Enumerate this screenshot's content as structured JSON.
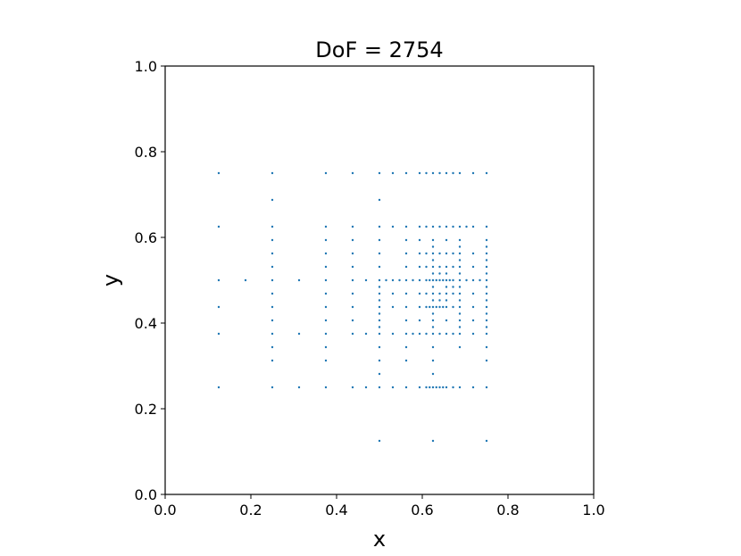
{
  "chart_data": {
    "type": "scatter",
    "title": "DoF = 2754",
    "xlabel": "x",
    "ylabel": "y",
    "xlim": [
      0.0,
      1.0
    ],
    "ylim": [
      0.0,
      1.0
    ],
    "xticks": [
      "0.0",
      "0.2",
      "0.4",
      "0.6",
      "0.8",
      "1.0"
    ],
    "yticks": [
      "0.0",
      "0.2",
      "0.4",
      "0.6",
      "0.8",
      "1.0"
    ],
    "grid": false,
    "marker_color": "#1f77b4",
    "points": [
      [
        0.125,
        0.75
      ],
      [
        0.25,
        0.75
      ],
      [
        0.375,
        0.75
      ],
      [
        0.4375,
        0.75
      ],
      [
        0.5,
        0.75
      ],
      [
        0.53125,
        0.75
      ],
      [
        0.5625,
        0.75
      ],
      [
        0.59375,
        0.75
      ],
      [
        0.609375,
        0.75
      ],
      [
        0.625,
        0.75
      ],
      [
        0.640625,
        0.75
      ],
      [
        0.65625,
        0.75
      ],
      [
        0.671875,
        0.75
      ],
      [
        0.6875,
        0.75
      ],
      [
        0.71875,
        0.75
      ],
      [
        0.75,
        0.75
      ],
      [
        0.25,
        0.6875
      ],
      [
        0.5,
        0.6875
      ],
      [
        0.125,
        0.625
      ],
      [
        0.25,
        0.625
      ],
      [
        0.375,
        0.625
      ],
      [
        0.4375,
        0.625
      ],
      [
        0.5,
        0.625
      ],
      [
        0.53125,
        0.625
      ],
      [
        0.5625,
        0.625
      ],
      [
        0.59375,
        0.625
      ],
      [
        0.609375,
        0.625
      ],
      [
        0.625,
        0.625
      ],
      [
        0.640625,
        0.625
      ],
      [
        0.65625,
        0.625
      ],
      [
        0.671875,
        0.625
      ],
      [
        0.6875,
        0.625
      ],
      [
        0.703125,
        0.625
      ],
      [
        0.71875,
        0.625
      ],
      [
        0.75,
        0.625
      ],
      [
        0.25,
        0.59375
      ],
      [
        0.375,
        0.59375
      ],
      [
        0.4375,
        0.59375
      ],
      [
        0.5,
        0.59375
      ],
      [
        0.5625,
        0.59375
      ],
      [
        0.59375,
        0.59375
      ],
      [
        0.625,
        0.59375
      ],
      [
        0.65625,
        0.59375
      ],
      [
        0.6875,
        0.59375
      ],
      [
        0.75,
        0.59375
      ],
      [
        0.625,
        0.578125
      ],
      [
        0.6875,
        0.578125
      ],
      [
        0.75,
        0.578125
      ],
      [
        0.25,
        0.5625
      ],
      [
        0.375,
        0.5625
      ],
      [
        0.4375,
        0.5625
      ],
      [
        0.5,
        0.5625
      ],
      [
        0.5625,
        0.5625
      ],
      [
        0.59375,
        0.5625
      ],
      [
        0.609375,
        0.5625
      ],
      [
        0.625,
        0.5625
      ],
      [
        0.640625,
        0.5625
      ],
      [
        0.65625,
        0.5625
      ],
      [
        0.671875,
        0.5625
      ],
      [
        0.6875,
        0.5625
      ],
      [
        0.71875,
        0.5625
      ],
      [
        0.75,
        0.5625
      ],
      [
        0.625,
        0.546875
      ],
      [
        0.6875,
        0.546875
      ],
      [
        0.75,
        0.546875
      ],
      [
        0.25,
        0.53125
      ],
      [
        0.375,
        0.53125
      ],
      [
        0.4375,
        0.53125
      ],
      [
        0.5,
        0.53125
      ],
      [
        0.5625,
        0.53125
      ],
      [
        0.59375,
        0.53125
      ],
      [
        0.609375,
        0.53125
      ],
      [
        0.625,
        0.53125
      ],
      [
        0.640625,
        0.53125
      ],
      [
        0.65625,
        0.53125
      ],
      [
        0.671875,
        0.53125
      ],
      [
        0.6875,
        0.53125
      ],
      [
        0.71875,
        0.53125
      ],
      [
        0.75,
        0.53125
      ],
      [
        0.625,
        0.515625
      ],
      [
        0.640625,
        0.515625
      ],
      [
        0.65625,
        0.515625
      ],
      [
        0.6875,
        0.515625
      ],
      [
        0.75,
        0.515625
      ],
      [
        0.125,
        0.5
      ],
      [
        0.1875,
        0.5
      ],
      [
        0.25,
        0.5
      ],
      [
        0.3125,
        0.5
      ],
      [
        0.375,
        0.5
      ],
      [
        0.4375,
        0.5
      ],
      [
        0.46875,
        0.5
      ],
      [
        0.5,
        0.5
      ],
      [
        0.515625,
        0.5
      ],
      [
        0.53125,
        0.5
      ],
      [
        0.546875,
        0.5
      ],
      [
        0.5625,
        0.5
      ],
      [
        0.578125,
        0.5
      ],
      [
        0.59375,
        0.5
      ],
      [
        0.609375,
        0.5
      ],
      [
        0.617188,
        0.5
      ],
      [
        0.625,
        0.5
      ],
      [
        0.632813,
        0.5
      ],
      [
        0.640625,
        0.5
      ],
      [
        0.648438,
        0.5
      ],
      [
        0.65625,
        0.5
      ],
      [
        0.664063,
        0.5
      ],
      [
        0.671875,
        0.5
      ],
      [
        0.6875,
        0.5
      ],
      [
        0.703125,
        0.5
      ],
      [
        0.71875,
        0.5
      ],
      [
        0.734375,
        0.5
      ],
      [
        0.75,
        0.5
      ],
      [
        0.5,
        0.484375
      ],
      [
        0.625,
        0.484375
      ],
      [
        0.65625,
        0.484375
      ],
      [
        0.671875,
        0.484375
      ],
      [
        0.6875,
        0.484375
      ],
      [
        0.75,
        0.484375
      ],
      [
        0.25,
        0.46875
      ],
      [
        0.375,
        0.46875
      ],
      [
        0.4375,
        0.46875
      ],
      [
        0.5,
        0.46875
      ],
      [
        0.53125,
        0.46875
      ],
      [
        0.5625,
        0.46875
      ],
      [
        0.59375,
        0.46875
      ],
      [
        0.609375,
        0.46875
      ],
      [
        0.625,
        0.46875
      ],
      [
        0.640625,
        0.46875
      ],
      [
        0.65625,
        0.46875
      ],
      [
        0.671875,
        0.46875
      ],
      [
        0.6875,
        0.46875
      ],
      [
        0.71875,
        0.46875
      ],
      [
        0.75,
        0.46875
      ],
      [
        0.5,
        0.453125
      ],
      [
        0.625,
        0.453125
      ],
      [
        0.640625,
        0.453125
      ],
      [
        0.65625,
        0.453125
      ],
      [
        0.6875,
        0.453125
      ],
      [
        0.75,
        0.453125
      ],
      [
        0.125,
        0.4375
      ],
      [
        0.25,
        0.4375
      ],
      [
        0.375,
        0.4375
      ],
      [
        0.4375,
        0.4375
      ],
      [
        0.5,
        0.4375
      ],
      [
        0.53125,
        0.4375
      ],
      [
        0.5625,
        0.4375
      ],
      [
        0.59375,
        0.4375
      ],
      [
        0.609375,
        0.4375
      ],
      [
        0.617188,
        0.4375
      ],
      [
        0.625,
        0.4375
      ],
      [
        0.632813,
        0.4375
      ],
      [
        0.640625,
        0.4375
      ],
      [
        0.648438,
        0.4375
      ],
      [
        0.65625,
        0.4375
      ],
      [
        0.671875,
        0.4375
      ],
      [
        0.6875,
        0.4375
      ],
      [
        0.71875,
        0.4375
      ],
      [
        0.75,
        0.4375
      ],
      [
        0.5,
        0.421875
      ],
      [
        0.625,
        0.421875
      ],
      [
        0.6875,
        0.421875
      ],
      [
        0.75,
        0.421875
      ],
      [
        0.25,
        0.40625
      ],
      [
        0.375,
        0.40625
      ],
      [
        0.4375,
        0.40625
      ],
      [
        0.5,
        0.40625
      ],
      [
        0.5625,
        0.40625
      ],
      [
        0.59375,
        0.40625
      ],
      [
        0.625,
        0.40625
      ],
      [
        0.65625,
        0.40625
      ],
      [
        0.6875,
        0.40625
      ],
      [
        0.71875,
        0.40625
      ],
      [
        0.75,
        0.40625
      ],
      [
        0.5,
        0.390625
      ],
      [
        0.625,
        0.390625
      ],
      [
        0.6875,
        0.390625
      ],
      [
        0.75,
        0.390625
      ],
      [
        0.125,
        0.375
      ],
      [
        0.25,
        0.375
      ],
      [
        0.3125,
        0.375
      ],
      [
        0.375,
        0.375
      ],
      [
        0.4375,
        0.375
      ],
      [
        0.46875,
        0.375
      ],
      [
        0.5,
        0.375
      ],
      [
        0.53125,
        0.375
      ],
      [
        0.5625,
        0.375
      ],
      [
        0.578125,
        0.375
      ],
      [
        0.59375,
        0.375
      ],
      [
        0.609375,
        0.375
      ],
      [
        0.625,
        0.375
      ],
      [
        0.640625,
        0.375
      ],
      [
        0.65625,
        0.375
      ],
      [
        0.671875,
        0.375
      ],
      [
        0.6875,
        0.375
      ],
      [
        0.71875,
        0.375
      ],
      [
        0.75,
        0.375
      ],
      [
        0.25,
        0.34375
      ],
      [
        0.375,
        0.34375
      ],
      [
        0.5,
        0.34375
      ],
      [
        0.5625,
        0.34375
      ],
      [
        0.625,
        0.34375
      ],
      [
        0.6875,
        0.34375
      ],
      [
        0.75,
        0.34375
      ],
      [
        0.25,
        0.3125
      ],
      [
        0.375,
        0.3125
      ],
      [
        0.5,
        0.3125
      ],
      [
        0.5625,
        0.3125
      ],
      [
        0.625,
        0.3125
      ],
      [
        0.75,
        0.3125
      ],
      [
        0.5,
        0.28125
      ],
      [
        0.625,
        0.28125
      ],
      [
        0.125,
        0.25
      ],
      [
        0.25,
        0.25
      ],
      [
        0.3125,
        0.25
      ],
      [
        0.375,
        0.25
      ],
      [
        0.4375,
        0.25
      ],
      [
        0.46875,
        0.25
      ],
      [
        0.5,
        0.25
      ],
      [
        0.53125,
        0.25
      ],
      [
        0.5625,
        0.25
      ],
      [
        0.59375,
        0.25
      ],
      [
        0.609375,
        0.25
      ],
      [
        0.617188,
        0.25
      ],
      [
        0.625,
        0.25
      ],
      [
        0.632813,
        0.25
      ],
      [
        0.640625,
        0.25
      ],
      [
        0.648438,
        0.25
      ],
      [
        0.65625,
        0.25
      ],
      [
        0.671875,
        0.25
      ],
      [
        0.6875,
        0.25
      ],
      [
        0.71875,
        0.25
      ],
      [
        0.75,
        0.25
      ],
      [
        0.5,
        0.125
      ],
      [
        0.625,
        0.125
      ],
      [
        0.75,
        0.125
      ]
    ]
  }
}
